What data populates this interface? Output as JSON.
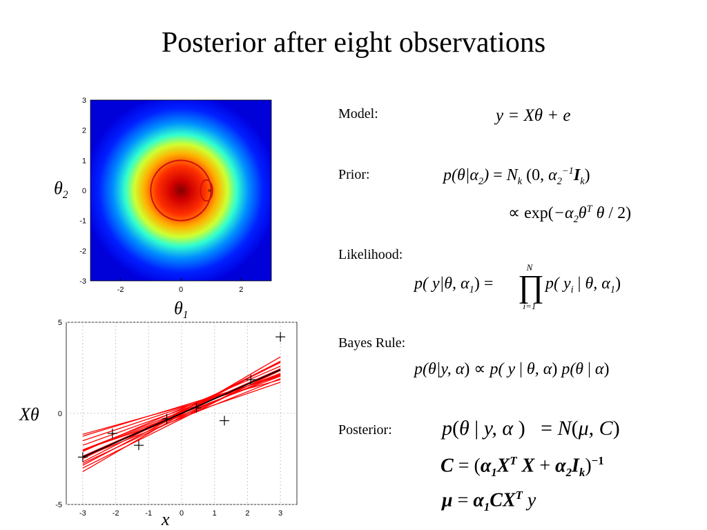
{
  "title": "Posterior after eight observations",
  "labels": {
    "model": "Model:",
    "prior": "Prior:",
    "likelihood": "Likelihood:",
    "bayes": "Bayes Rule:",
    "posterior": "Posterior:"
  },
  "axis_symbols": {
    "theta2": "θ",
    "theta2_sub": "2",
    "theta1": "θ",
    "theta1_sub": "1",
    "x": "x",
    "xtheta": "Xθ"
  },
  "equations": {
    "model": "y = Xθ + e",
    "likelihood_product_top": "N",
    "likelihood_product_bottom": "i=1"
  },
  "chart_data": [
    {
      "type": "heatmap",
      "description_kind": "posterior density over theta1, theta2",
      "xlim": [
        -3,
        3
      ],
      "ylim": [
        -3,
        3
      ],
      "x_ticks": [
        -2,
        0,
        2
      ],
      "y_ticks": [
        3,
        2,
        1,
        0,
        -1,
        -2,
        -3
      ],
      "density_center": [
        0,
        0
      ],
      "colormap": [
        "#00008f",
        "#0000ff",
        "#00ffff",
        "#ffff00",
        "#ff0000",
        "#800000"
      ],
      "contours": [
        {
          "center": [
            0,
            0
          ],
          "rx": 1.0,
          "ry": 1.0,
          "color": "#d01010"
        },
        {
          "center": [
            0.85,
            0
          ],
          "rx": 0.2,
          "ry": 0.35,
          "color": "#d01010"
        }
      ],
      "marker": {
        "x": 0.95,
        "y": 0.0,
        "symbol": "×"
      },
      "grid": false
    },
    {
      "type": "line",
      "xlim": [
        -3.5,
        3.5
      ],
      "ylim": [
        -5,
        5
      ],
      "x_ticks": [
        -3,
        -2,
        -1,
        0,
        1,
        2,
        3
      ],
      "y_ticks": [
        5,
        0,
        -5
      ],
      "grid": true,
      "observations": [
        {
          "x": -3.0,
          "y": -2.4
        },
        {
          "x": -2.1,
          "y": -1.1
        },
        {
          "x": -1.3,
          "y": -1.75
        },
        {
          "x": -0.45,
          "y": -0.3
        },
        {
          "x": 0.45,
          "y": 0.3
        },
        {
          "x": 1.3,
          "y": -0.4
        },
        {
          "x": 2.1,
          "y": 1.85
        },
        {
          "x": 3.0,
          "y": 4.2
        }
      ],
      "true_line": {
        "intercept": 0.0,
        "slope": 0.8,
        "color": "#000000"
      },
      "sample_lines": [
        {
          "intercept": 0.1,
          "slope": 0.7
        },
        {
          "intercept": -0.2,
          "slope": 0.85
        },
        {
          "intercept": 0.3,
          "slope": 0.6
        },
        {
          "intercept": 0.0,
          "slope": 0.95
        },
        {
          "intercept": -0.1,
          "slope": 0.75
        },
        {
          "intercept": 0.2,
          "slope": 0.65
        },
        {
          "intercept": -0.3,
          "slope": 0.9
        },
        {
          "intercept": 0.4,
          "slope": 0.55
        },
        {
          "intercept": 0.05,
          "slope": 0.8
        },
        {
          "intercept": -0.25,
          "slope": 0.72
        },
        {
          "intercept": 0.15,
          "slope": 0.88
        },
        {
          "intercept": 0.0,
          "slope": 0.68
        },
        {
          "intercept": 0.25,
          "slope": 0.78
        },
        {
          "intercept": -0.15,
          "slope": 0.62
        },
        {
          "intercept": 0.1,
          "slope": 0.92
        },
        {
          "intercept": -0.05,
          "slope": 1.05
        },
        {
          "intercept": 0.35,
          "slope": 0.5
        }
      ],
      "sample_color": "#ff0000"
    }
  ]
}
